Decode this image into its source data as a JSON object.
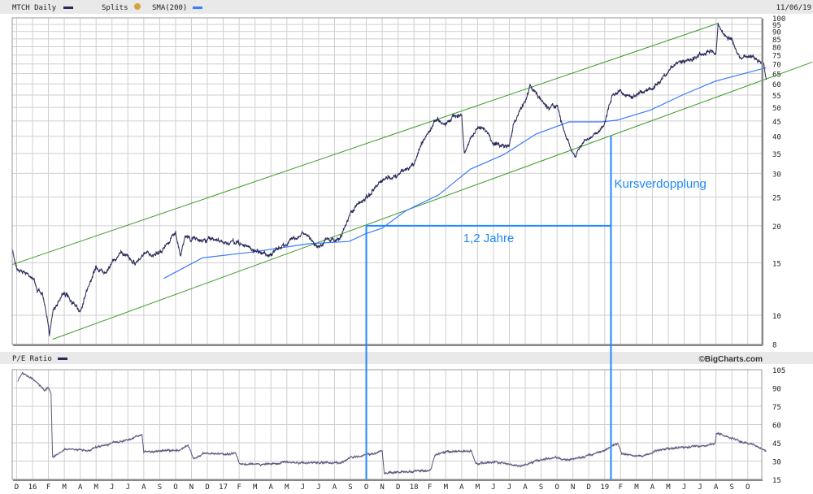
{
  "header": {
    "symbol_label": "MTCH Daily",
    "splits_label": "Splits",
    "splits_icon": "splits-coin-icon",
    "sma_label": "SMA(200)",
    "date": "11/06/19"
  },
  "lower_header": {
    "label": "P/E Ratio",
    "credit": "©BigCharts.com"
  },
  "colors": {
    "price": "#2a2a5a",
    "sma": "#3a7bff",
    "trend": "#3c9a28",
    "annotation": "#1e88ff",
    "grid": "#cfcfcf",
    "pe": "#5a5a80",
    "splits": "#d8a040"
  },
  "annotations": {
    "duration_label": "1,2 Jahre",
    "doubling_label": "Kursverdopplung"
  },
  "chart_data": [
    {
      "type": "line",
      "title": "MTCH Daily",
      "yscale": "log",
      "ylim": [
        8,
        100
      ],
      "yticks": [
        8,
        10,
        15,
        20,
        25,
        30,
        35,
        40,
        45,
        50,
        55,
        60,
        65,
        70,
        75,
        80,
        85,
        90,
        95,
        100
      ],
      "grid": true,
      "legend": "top-left",
      "series": [
        {
          "name": "MTCH Daily",
          "points": [
            [
              "2015-11-23",
              16.5
            ],
            [
              "2015-12-01",
              14.5
            ],
            [
              "2015-12-15",
              14
            ],
            [
              "2016-01-01",
              13.5
            ],
            [
              "2016-01-10",
              12.2
            ],
            [
              "2016-01-20",
              11.8
            ],
            [
              "2016-02-03",
              8.7
            ],
            [
              "2016-02-10",
              10.5
            ],
            [
              "2016-03-01",
              12
            ],
            [
              "2016-03-15",
              11
            ],
            [
              "2016-04-01",
              10.3
            ],
            [
              "2016-04-15",
              12.5
            ],
            [
              "2016-05-01",
              14.5
            ],
            [
              "2016-05-15",
              14
            ],
            [
              "2016-06-01",
              15
            ],
            [
              "2016-06-15",
              16
            ],
            [
              "2016-07-01",
              16
            ],
            [
              "2016-07-15",
              15
            ],
            [
              "2016-08-01",
              16
            ],
            [
              "2016-08-15",
              16
            ],
            [
              "2016-09-01",
              16.5
            ],
            [
              "2016-09-15",
              17.2
            ],
            [
              "2016-10-01",
              19
            ],
            [
              "2016-10-10",
              16
            ],
            [
              "2016-10-20",
              18.5
            ],
            [
              "2016-11-01",
              18
            ],
            [
              "2016-12-01",
              18
            ],
            [
              "2017-01-01",
              17.5
            ],
            [
              "2017-02-01",
              17.5
            ],
            [
              "2017-03-01",
              16.5
            ],
            [
              "2017-04-01",
              16
            ],
            [
              "2017-05-01",
              17.5
            ],
            [
              "2017-06-01",
              19
            ],
            [
              "2017-06-15",
              18
            ],
            [
              "2017-07-01",
              17
            ],
            [
              "2017-07-15",
              18
            ],
            [
              "2017-08-01",
              18
            ],
            [
              "2017-08-15",
              18.5
            ],
            [
              "2017-09-01",
              22
            ],
            [
              "2017-09-15",
              23.5
            ],
            [
              "2017-10-01",
              25
            ],
            [
              "2017-11-01",
              28
            ],
            [
              "2017-11-15",
              29
            ],
            [
              "2017-12-01",
              29.5
            ],
            [
              "2017-12-15",
              31
            ],
            [
              "2018-01-01",
              32
            ],
            [
              "2018-01-15",
              38
            ],
            [
              "2018-02-01",
              42
            ],
            [
              "2018-02-15",
              46
            ],
            [
              "2018-03-01",
              44
            ],
            [
              "2018-03-15",
              47
            ],
            [
              "2018-04-01",
              47
            ],
            [
              "2018-04-06",
              35
            ],
            [
              "2018-04-20",
              40
            ],
            [
              "2018-05-01",
              42
            ],
            [
              "2018-05-15",
              43
            ],
            [
              "2018-06-01",
              38
            ],
            [
              "2018-06-15",
              37
            ],
            [
              "2018-07-01",
              37
            ],
            [
              "2018-07-10",
              45
            ],
            [
              "2018-08-01",
              52
            ],
            [
              "2018-08-10",
              59
            ],
            [
              "2018-09-01",
              53
            ],
            [
              "2018-09-15",
              50
            ],
            [
              "2018-10-01",
              51
            ],
            [
              "2018-10-08",
              45
            ],
            [
              "2018-10-25",
              37
            ],
            [
              "2018-11-05",
              34
            ],
            [
              "2018-11-20",
              38
            ],
            [
              "2018-12-01",
              39
            ],
            [
              "2018-12-20",
              41
            ],
            [
              "2019-01-01",
              45
            ],
            [
              "2019-01-15",
              55
            ],
            [
              "2019-02-01",
              57
            ],
            [
              "2019-02-15",
              55
            ],
            [
              "2019-03-01",
              55
            ],
            [
              "2019-04-01",
              58
            ],
            [
              "2019-04-15",
              60
            ],
            [
              "2019-05-01",
              65
            ],
            [
              "2019-05-15",
              71
            ],
            [
              "2019-06-01",
              72
            ],
            [
              "2019-07-01",
              75
            ],
            [
              "2019-07-15",
              78
            ],
            [
              "2019-08-01",
              76
            ],
            [
              "2019-08-05",
              96
            ],
            [
              "2019-08-15",
              88
            ],
            [
              "2019-09-01",
              85
            ],
            [
              "2019-09-10",
              76
            ],
            [
              "2019-09-20",
              72
            ],
            [
              "2019-10-01",
              75
            ],
            [
              "2019-10-15",
              73
            ],
            [
              "2019-11-01",
              70
            ],
            [
              "2019-11-06",
              62
            ]
          ]
        },
        {
          "name": "SMA(200)",
          "points": [
            [
              "2016-09-09",
              13.3
            ],
            [
              "2016-11-22",
              15.6
            ],
            [
              "2017-02-25",
              16.3
            ],
            [
              "2017-06-12",
              17.4
            ],
            [
              "2017-08-29",
              17.7
            ],
            [
              "2017-09-30",
              18.8
            ],
            [
              "2017-10-31",
              19.6
            ],
            [
              "2017-12-15",
              22.4
            ],
            [
              "2018-02-18",
              25.4
            ],
            [
              "2018-04-18",
              31
            ],
            [
              "2018-06-21",
              34.7
            ],
            [
              "2018-08-22",
              40.7
            ],
            [
              "2018-10-24",
              44.7
            ],
            [
              "2018-12-25",
              44.7
            ],
            [
              "2019-01-25",
              45.3
            ],
            [
              "2019-03-28",
              49
            ],
            [
              "2019-05-28",
              55
            ],
            [
              "2019-07-30",
              61.2
            ],
            [
              "2019-11-06",
              68
            ]
          ]
        }
      ],
      "trendlines": [
        {
          "from": [
            "2015-11-23",
            14.8
          ],
          "to": [
            "2019-08-06",
            96
          ]
        },
        {
          "from": [
            "2016-02-09",
            8.3
          ],
          "to": [
            "2020-02-03",
            71
          ]
        }
      ],
      "markers": [
        {
          "label": "1,2 Jahre",
          "from": [
            "2017-10-01",
            20
          ],
          "to": [
            "2019-01-13",
            20
          ]
        },
        {
          "label": "Kursverdopplung",
          "date": "2019-01-13",
          "price": 40
        },
        {
          "date": "2017-10-01",
          "price": 20
        }
      ]
    },
    {
      "type": "line",
      "title": "P/E Ratio",
      "ylim": [
        15,
        105
      ],
      "yticks": [
        15,
        30,
        45,
        60,
        75,
        90,
        105
      ],
      "grid": true,
      "xticks": [
        "D",
        "16",
        "F",
        "M",
        "A",
        "M",
        "J",
        "J",
        "A",
        "S",
        "O",
        "N",
        "D",
        "17",
        "F",
        "M",
        "A",
        "M",
        "J",
        "J",
        "A",
        "S",
        "O",
        "N",
        "D",
        "18",
        "F",
        "M",
        "A",
        "M",
        "J",
        "J",
        "A",
        "S",
        "O",
        "N",
        "D",
        "19",
        "F",
        "M",
        "A",
        "M",
        "J",
        "J",
        "A",
        "S",
        "O"
      ],
      "series": [
        {
          "name": "P/E Ratio",
          "points": [
            [
              "2015-12-03",
              95
            ],
            [
              "2015-12-12",
              102
            ],
            [
              "2015-12-23",
              100
            ],
            [
              "2016-01-09",
              95
            ],
            [
              "2016-01-24",
              88
            ],
            [
              "2016-02-01",
              90
            ],
            [
              "2016-02-06",
              85
            ],
            [
              "2016-02-09",
              33
            ],
            [
              "2016-02-16",
              35
            ],
            [
              "2016-03-02",
              40
            ],
            [
              "2016-04-03",
              39
            ],
            [
              "2016-04-18",
              38
            ],
            [
              "2016-05-04",
              42
            ],
            [
              "2016-06-04",
              45
            ],
            [
              "2016-07-05",
              48
            ],
            [
              "2016-07-28",
              52
            ],
            [
              "2016-08-01",
              38
            ],
            [
              "2016-08-21",
              38
            ],
            [
              "2016-10-07",
              39
            ],
            [
              "2016-10-25",
              43
            ],
            [
              "2016-11-04",
              32
            ],
            [
              "2016-11-23",
              36
            ],
            [
              "2017-01-25",
              36
            ],
            [
              "2017-02-02",
              28
            ],
            [
              "2017-03-10",
              27
            ],
            [
              "2017-04-27",
              29
            ],
            [
              "2017-06-13",
              28
            ],
            [
              "2017-08-14",
              29
            ],
            [
              "2017-09-02",
              33
            ],
            [
              "2017-09-30",
              35
            ],
            [
              "2017-11-01",
              38
            ],
            [
              "2017-11-05",
              20
            ],
            [
              "2017-12-01",
              21
            ],
            [
              "2018-01-18",
              22
            ],
            [
              "2018-02-03",
              23
            ],
            [
              "2018-02-11",
              35
            ],
            [
              "2018-03-04",
              38
            ],
            [
              "2018-04-20",
              38
            ],
            [
              "2018-04-28",
              28
            ],
            [
              "2018-06-06",
              29
            ],
            [
              "2018-07-22",
              26
            ],
            [
              "2018-08-23",
              30
            ],
            [
              "2018-09-24",
              33
            ],
            [
              "2018-10-24",
              31
            ],
            [
              "2018-11-25",
              34
            ],
            [
              "2018-12-25",
              38
            ],
            [
              "2019-01-26",
              45
            ],
            [
              "2019-02-03",
              36
            ],
            [
              "2019-03-12",
              34
            ],
            [
              "2019-04-13",
              39
            ],
            [
              "2019-05-14",
              41
            ],
            [
              "2019-06-30",
              42
            ],
            [
              "2019-07-30",
              44
            ],
            [
              "2019-08-02",
              53
            ],
            [
              "2019-09-01",
              49
            ],
            [
              "2019-09-24",
              45
            ],
            [
              "2019-10-17",
              43
            ],
            [
              "2019-11-06",
              38
            ]
          ]
        }
      ]
    }
  ]
}
